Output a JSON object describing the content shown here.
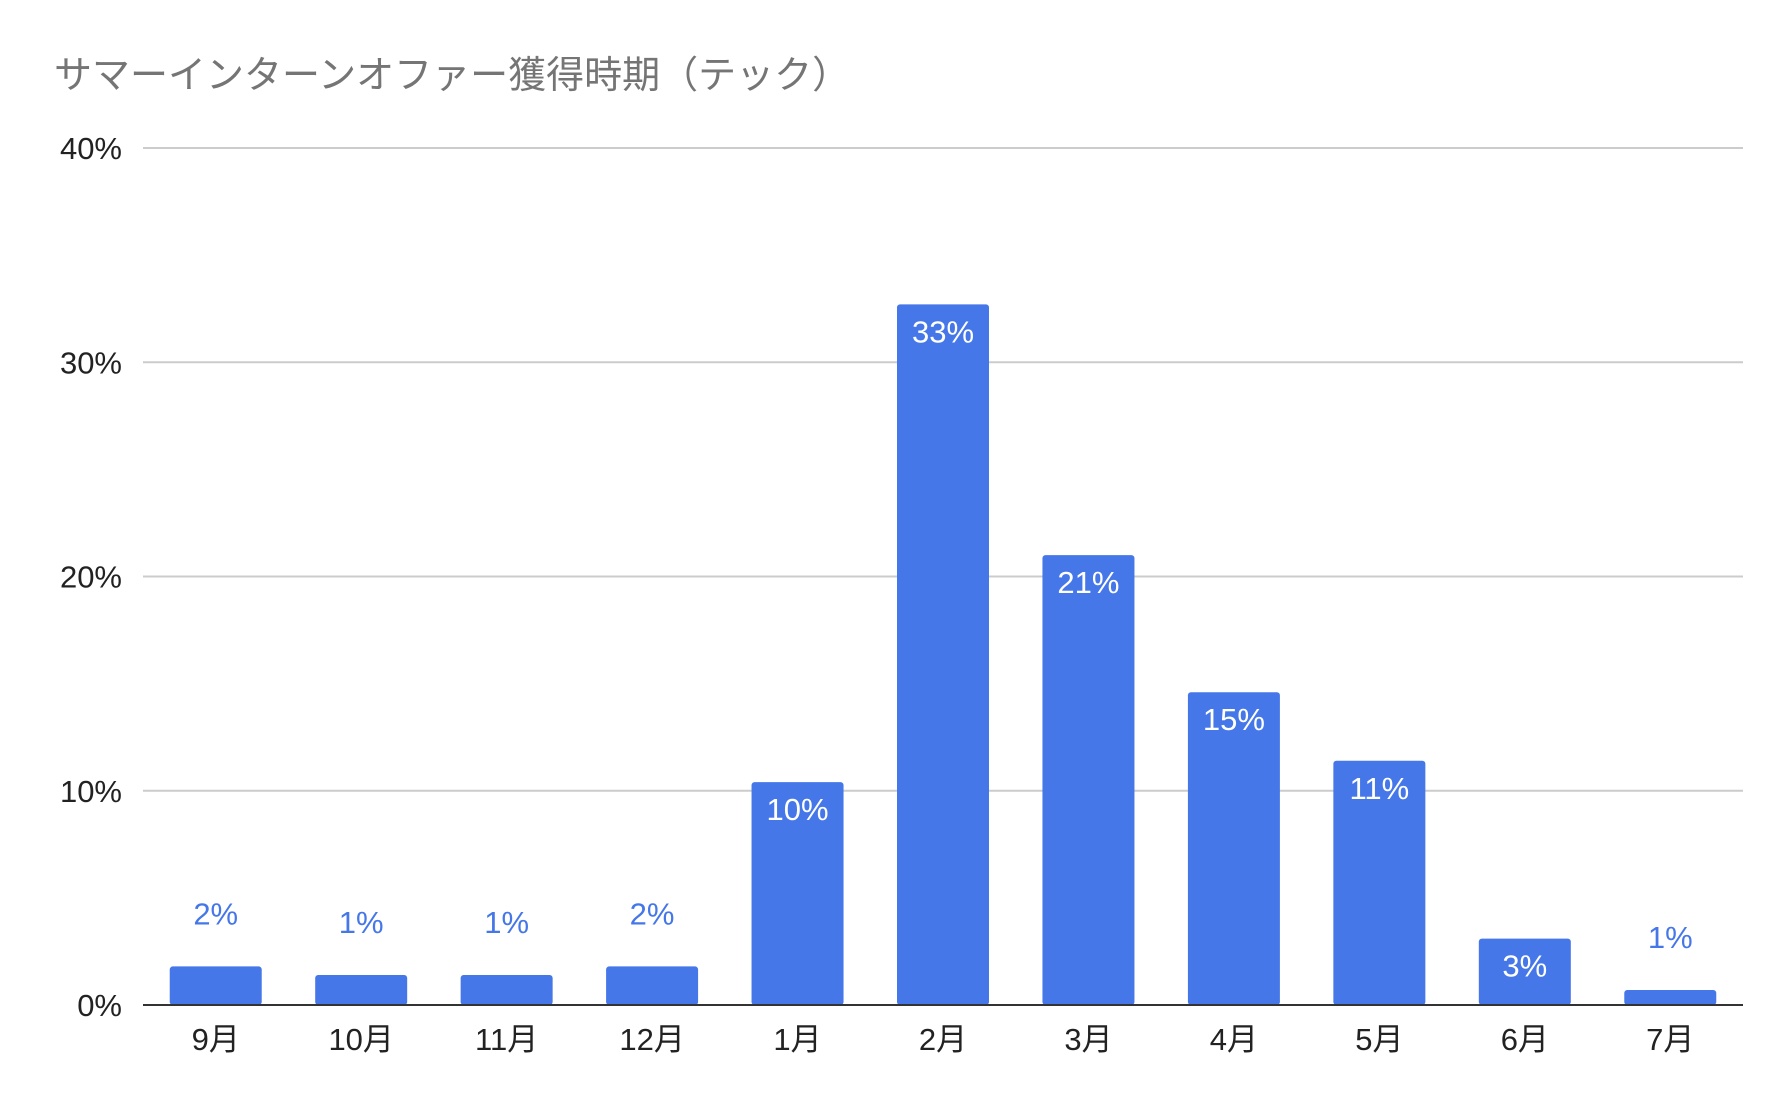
{
  "chart_data": {
    "type": "bar",
    "title": "サマーインターンオファー獲得時期（テック）",
    "categories": [
      "9月",
      "10月",
      "11月",
      "12月",
      "1月",
      "2月",
      "3月",
      "4月",
      "5月",
      "6月",
      "7月"
    ],
    "values": [
      1.8,
      1.4,
      1.4,
      1.8,
      10.4,
      32.7,
      21.0,
      14.6,
      11.4,
      3.1,
      0.7
    ],
    "data_labels": [
      "2%",
      "1%",
      "1%",
      "2%",
      "10%",
      "33%",
      "21%",
      "15%",
      "11%",
      "3%",
      "1%"
    ],
    "yticks": [
      0,
      10,
      20,
      30,
      40
    ],
    "ytick_labels": [
      "0%",
      "10%",
      "20%",
      "30%",
      "40%"
    ],
    "ylim": [
      0,
      40
    ],
    "unit": "%",
    "xlabel": "",
    "ylabel": "",
    "grid": true,
    "legend": "none",
    "colors": {
      "bar": "#4677e8",
      "grid": "#cccccc",
      "axis": "#333333",
      "title": "#757575"
    }
  }
}
